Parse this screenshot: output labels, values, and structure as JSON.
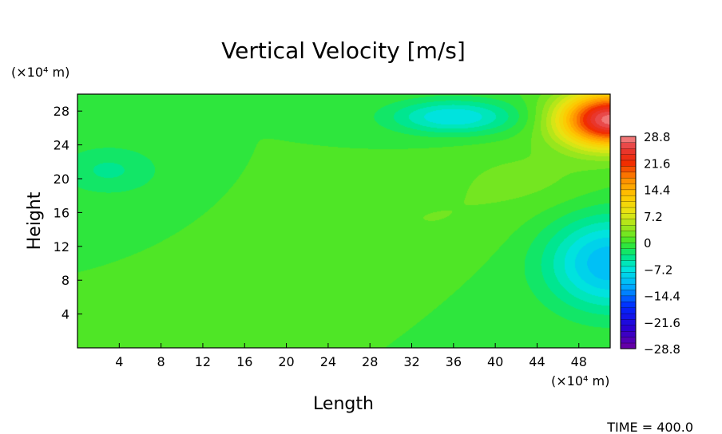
{
  "chart_data": {
    "type": "heatmap",
    "title": "Vertical Velocity [m/s]",
    "xlabel": "Length",
    "ylabel": "Height",
    "x_unit": "(×10⁴ m)",
    "y_unit": "(×10⁴ m)",
    "xlim": [
      0,
      51
    ],
    "ylim": [
      0,
      30
    ],
    "x_ticks": [
      4,
      8,
      12,
      16,
      20,
      24,
      28,
      32,
      36,
      40,
      44,
      48
    ],
    "x_tick_labels": [
      "4",
      "8",
      "12",
      "16",
      "20",
      "24",
      "28",
      "32",
      "36",
      "40",
      "44",
      "48"
    ],
    "y_ticks": [
      4,
      8,
      12,
      16,
      20,
      24,
      28
    ],
    "y_tick_labels": [
      "4",
      "8",
      "12",
      "16",
      "20",
      "24",
      "28"
    ],
    "colorbar": {
      "min": -28.8,
      "max": 28.8,
      "levels": 36,
      "ticks": [
        28.8,
        21.6,
        14.4,
        7.2,
        0,
        -7.2,
        -14.4,
        -21.6,
        -28.8
      ],
      "tick_labels": [
        "28.8",
        "21.6",
        "14.4",
        "7.2",
        "0",
        "−7.2",
        "−14.4",
        "−21.6",
        "−28.8"
      ]
    },
    "features": [
      {
        "x": 51,
        "y": 27,
        "sx": 4.8,
        "sy": 3.2,
        "value": 28
      },
      {
        "x": 36,
        "y": 27.3,
        "sx": 6.0,
        "sy": 2.0,
        "value": -8
      },
      {
        "x": 51,
        "y": 10,
        "sx": 6.0,
        "sy": 5.5,
        "value": -11
      },
      {
        "x": 3,
        "y": 21,
        "sx": 5.0,
        "sy": 3.0,
        "value": -3.5
      },
      {
        "x": 43,
        "y": 20,
        "sx": 8.0,
        "sy": 4.0,
        "value": 2
      },
      {
        "x": 33,
        "y": 15,
        "sx": 9.0,
        "sy": 4.0,
        "value": 1.5
      }
    ],
    "grid": false,
    "legend": "right"
  },
  "footer": {
    "time_label": "TIME = 400.0"
  }
}
